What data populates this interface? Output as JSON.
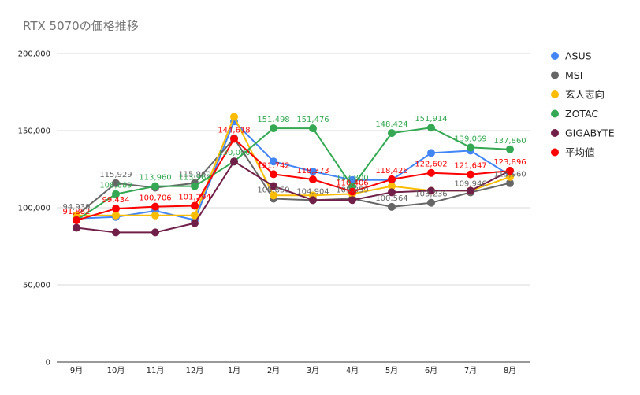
{
  "chart_data": {
    "type": "line",
    "title": "RTX 5070の価格推移",
    "xlabel": "",
    "ylabel": "",
    "ylim": [
      0,
      200000
    ],
    "yticks": [
      "0",
      "50,000",
      "100,000",
      "150,000",
      "200,000"
    ],
    "grid": true,
    "legend_position": "right",
    "categories": [
      "9月",
      "10月",
      "11月",
      "12月",
      "1月",
      "2月",
      "3月",
      "4月",
      "5月",
      "6月",
      "7月",
      "8月"
    ],
    "series": [
      {
        "name": "ASUS",
        "color": "#4285f4",
        "values": [
          93000,
          94000,
          98000,
          92000,
          156000,
          130000,
          123500,
          118000,
          118000,
          135500,
          137000,
          121000
        ]
      },
      {
        "name": "MSI",
        "color": "#666666",
        "values": [
          94939,
          115929,
          113000,
          115960,
          145000,
          105859,
          104904,
          105859,
          100564,
          103236,
          109946,
          115960
        ]
      },
      {
        "name": "玄人志向",
        "color": "#fbbc04",
        "values": [
          95000,
          95000,
          95000,
          95000,
          159000,
          108000,
          108000,
          109000,
          114000,
          111000,
          111000,
          120000
        ]
      },
      {
        "name": "ZOTAC",
        "color": "#34a853",
        "values": [
          92000,
          108889,
          113960,
          113960,
          130000,
          151498,
          151476,
          113800,
          148424,
          151914,
          139069,
          137860
        ]
      },
      {
        "name": "GIGABYTE",
        "color": "#701f48",
        "values": [
          87000,
          84000,
          84000,
          90000,
          130000,
          114000,
          105000,
          105000,
          110000,
          111000,
          111000,
          124000
        ]
      },
      {
        "name": "平均値",
        "color": "#ff0000",
        "values": [
          91882,
          99434,
          100706,
          101294,
          144618,
          121742,
          118373,
          110406,
          118426,
          122602,
          121647,
          123896
        ]
      }
    ],
    "data_labels": [
      {
        "text": "94,939",
        "series": 1,
        "index": 0
      },
      {
        "text": "91,882",
        "series": 5,
        "index": 0
      },
      {
        "text": "115,929",
        "series": 1,
        "index": 1
      },
      {
        "text": "108,889",
        "series": 3,
        "index": 1
      },
      {
        "text": "99,434",
        "series": 5,
        "index": 1
      },
      {
        "text": "113,960",
        "series": 3,
        "index": 2
      },
      {
        "text": "100,706",
        "series": 5,
        "index": 2
      },
      {
        "text": "115,960",
        "series": 1,
        "index": 3
      },
      {
        "text": "113,960",
        "series": 3,
        "index": 3
      },
      {
        "text": "101,294",
        "series": 5,
        "index": 3
      },
      {
        "text": "144,618",
        "series": 5,
        "index": 4
      },
      {
        "text": "130,000",
        "series": 3,
        "index": 4
      },
      {
        "text": "151,498",
        "series": 3,
        "index": 5
      },
      {
        "text": "121,742",
        "series": 5,
        "index": 5
      },
      {
        "text": "105,859",
        "series": 1,
        "index": 5
      },
      {
        "text": "151,476",
        "series": 3,
        "index": 6
      },
      {
        "text": "118,373",
        "series": 5,
        "index": 6
      },
      {
        "text": "104,904",
        "series": 1,
        "index": 6
      },
      {
        "text": "113,800",
        "series": 3,
        "index": 7
      },
      {
        "text": "110,406",
        "series": 5,
        "index": 7
      },
      {
        "text": "105,859",
        "series": 1,
        "index": 7
      },
      {
        "text": "148,424",
        "series": 3,
        "index": 8
      },
      {
        "text": "118,426",
        "series": 5,
        "index": 8
      },
      {
        "text": "100,564",
        "series": 1,
        "index": 8
      },
      {
        "text": "151,914",
        "series": 3,
        "index": 9
      },
      {
        "text": "122,602",
        "series": 5,
        "index": 9
      },
      {
        "text": "103,236",
        "series": 1,
        "index": 9
      },
      {
        "text": "139,069",
        "series": 3,
        "index": 10
      },
      {
        "text": "121,647",
        "series": 5,
        "index": 10
      },
      {
        "text": "109,946",
        "series": 1,
        "index": 10
      },
      {
        "text": "137,860",
        "series": 3,
        "index": 11
      },
      {
        "text": "123,896",
        "series": 5,
        "index": 11
      },
      {
        "text": "115,960",
        "series": 1,
        "index": 11
      }
    ]
  }
}
